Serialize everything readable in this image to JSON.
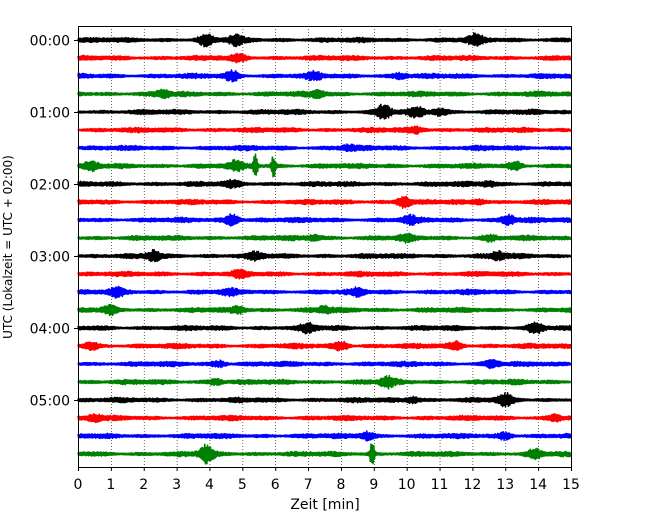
{
  "chart_data": {
    "type": "line",
    "title": "",
    "xlabel": "Zeit  [min]",
    "ylabel": "UTC (Lokalzeit = UTC + 02:00)",
    "xlim": [
      0,
      15
    ],
    "x_ticks": [
      0,
      1,
      2,
      3,
      4,
      5,
      6,
      7,
      8,
      9,
      10,
      11,
      12,
      13,
      14,
      15
    ],
    "x_tick_labels": [
      "0",
      "1",
      "2",
      "3",
      "4",
      "5",
      "6",
      "7",
      "8",
      "9",
      "10",
      "11",
      "12",
      "13",
      "14",
      "15"
    ],
    "y_tick_labels": [
      "00:00",
      "01:00",
      "02:00",
      "03:00",
      "04:00",
      "05:00"
    ],
    "trace_minutes": 15,
    "trace_count": 24,
    "grid": "vertical dotted at each minute",
    "colors": [
      "#000000",
      "#ff0000",
      "#0000ff",
      "#008000"
    ],
    "traces": [
      {
        "start": "00:00",
        "color": "#000000",
        "events": [
          {
            "t": 3.9,
            "amp": 0.6
          },
          {
            "t": 4.8,
            "amp": 0.5
          },
          {
            "t": 12.1,
            "amp": 0.6
          }
        ]
      },
      {
        "start": "00:15",
        "color": "#ff0000",
        "events": [
          {
            "t": 4.9,
            "amp": 0.35
          }
        ]
      },
      {
        "start": "00:30",
        "color": "#0000ff",
        "events": [
          {
            "t": 4.7,
            "amp": 0.55
          },
          {
            "t": 7.2,
            "amp": 0.35
          },
          {
            "t": 9.8,
            "amp": 0.3
          }
        ]
      },
      {
        "start": "00:45",
        "color": "#008000",
        "events": [
          {
            "t": 2.6,
            "amp": 0.4
          },
          {
            "t": 7.3,
            "amp": 0.35
          }
        ]
      },
      {
        "start": "01:00",
        "color": "#000000",
        "events": [
          {
            "t": 9.3,
            "amp": 0.8
          },
          {
            "t": 10.3,
            "amp": 0.5
          },
          {
            "t": 11.0,
            "amp": 0.4
          }
        ]
      },
      {
        "start": "01:15",
        "color": "#ff0000",
        "events": [
          {
            "t": 10.3,
            "amp": 0.3
          }
        ]
      },
      {
        "start": "01:30",
        "color": "#0000ff",
        "events": [
          {
            "t": 8.2,
            "amp": 0.3
          }
        ]
      },
      {
        "start": "01:45",
        "color": "#008000",
        "events": [
          {
            "t": 0.4,
            "amp": 0.45
          },
          {
            "t": 4.8,
            "amp": 0.5
          },
          {
            "t": 5.4,
            "amp": 1.4
          },
          {
            "t": 5.95,
            "amp": 1.3
          },
          {
            "t": 13.3,
            "amp": 0.45
          }
        ]
      },
      {
        "start": "02:00",
        "color": "#000000",
        "events": [
          {
            "t": 4.7,
            "amp": 0.3
          },
          {
            "t": 12.5,
            "amp": 0.3
          }
        ]
      },
      {
        "start": "02:15",
        "color": "#ff0000",
        "events": [
          {
            "t": 9.9,
            "amp": 0.65
          },
          {
            "t": 12.2,
            "amp": 0.3
          }
        ]
      },
      {
        "start": "02:30",
        "color": "#0000ff",
        "events": [
          {
            "t": 4.7,
            "amp": 0.7
          },
          {
            "t": 10.1,
            "amp": 0.4
          },
          {
            "t": 13.1,
            "amp": 0.55
          }
        ]
      },
      {
        "start": "02:45",
        "color": "#008000",
        "events": [
          {
            "t": 7.2,
            "amp": 0.3
          },
          {
            "t": 10.0,
            "amp": 0.3
          },
          {
            "t": 12.5,
            "amp": 0.3
          }
        ]
      },
      {
        "start": "03:00",
        "color": "#000000",
        "events": [
          {
            "t": 2.3,
            "amp": 0.55
          },
          {
            "t": 5.4,
            "amp": 0.35
          },
          {
            "t": 12.8,
            "amp": 0.45
          }
        ]
      },
      {
        "start": "03:15",
        "color": "#ff0000",
        "events": [
          {
            "t": 4.9,
            "amp": 0.3
          }
        ]
      },
      {
        "start": "03:30",
        "color": "#0000ff",
        "events": [
          {
            "t": 1.2,
            "amp": 0.45
          },
          {
            "t": 4.6,
            "amp": 0.3
          },
          {
            "t": 8.5,
            "amp": 0.35
          }
        ]
      },
      {
        "start": "03:45",
        "color": "#008000",
        "events": [
          {
            "t": 1.0,
            "amp": 0.4
          },
          {
            "t": 4.9,
            "amp": 0.35
          },
          {
            "t": 7.5,
            "amp": 0.35
          }
        ]
      },
      {
        "start": "04:00",
        "color": "#000000",
        "events": [
          {
            "t": 7.0,
            "amp": 0.45
          },
          {
            "t": 13.9,
            "amp": 0.55
          }
        ]
      },
      {
        "start": "04:15",
        "color": "#ff0000",
        "events": [
          {
            "t": 0.4,
            "amp": 0.4
          },
          {
            "t": 8.0,
            "amp": 0.5
          },
          {
            "t": 11.5,
            "amp": 0.45
          }
        ]
      },
      {
        "start": "04:30",
        "color": "#0000ff",
        "events": [
          {
            "t": 4.3,
            "amp": 0.35
          },
          {
            "t": 12.6,
            "amp": 0.4
          }
        ]
      },
      {
        "start": "04:45",
        "color": "#008000",
        "events": [
          {
            "t": 9.4,
            "amp": 0.6
          },
          {
            "t": 4.2,
            "amp": 0.35
          }
        ]
      },
      {
        "start": "05:00",
        "color": "#000000",
        "events": [
          {
            "t": 13.0,
            "amp": 0.65
          },
          {
            "t": 10.2,
            "amp": 0.35
          }
        ]
      },
      {
        "start": "05:15",
        "color": "#ff0000",
        "events": [
          {
            "t": 0.5,
            "amp": 0.35
          },
          {
            "t": 14.5,
            "amp": 0.4
          }
        ]
      },
      {
        "start": "05:30",
        "color": "#0000ff",
        "events": [
          {
            "t": 8.8,
            "amp": 0.45
          },
          {
            "t": 13.0,
            "amp": 0.4
          }
        ]
      },
      {
        "start": "05:45",
        "color": "#008000",
        "events": [
          {
            "t": 3.9,
            "amp": 1.0
          },
          {
            "t": 8.95,
            "amp": 1.6
          },
          {
            "t": 13.9,
            "amp": 0.5
          }
        ]
      }
    ]
  }
}
